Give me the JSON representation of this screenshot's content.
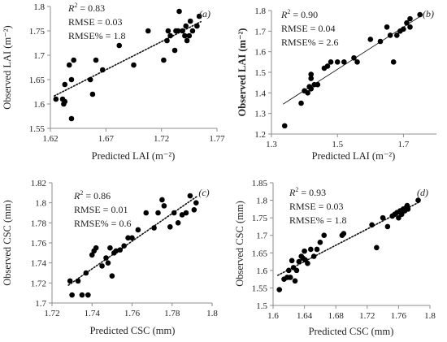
{
  "chart_data": [
    {
      "type": "scatter",
      "panel_label": "(a)",
      "xlabel": "Predicted LAI (m⁻²)",
      "ylabel": "Observed LAI (m⁻²)",
      "ylabel_bold": false,
      "xlim": [
        1.62,
        1.77
      ],
      "ylim": [
        1.55,
        1.8
      ],
      "xticks": [
        "1.62",
        "1.67",
        "1.72",
        "1.77"
      ],
      "yticks": [
        "1.55",
        "1.6",
        "1.65",
        "1.7",
        "1.75",
        "1.8"
      ],
      "trendline": "dotted",
      "stats": {
        "r2_value": "0.83",
        "rmse": "RMSE = 0.03",
        "rmse_pct": "RMSE% = 1.8"
      },
      "x": [
        1.625,
        1.631,
        1.632,
        1.633,
        1.633,
        1.637,
        1.639,
        1.639,
        1.641,
        1.656,
        1.658,
        1.661,
        1.667,
        1.682,
        1.695,
        1.708,
        1.722,
        1.725,
        1.726,
        1.728,
        1.732,
        1.733,
        1.735,
        1.736,
        1.739,
        1.741,
        1.742,
        1.743,
        1.745,
        1.746,
        1.748,
        1.752,
        1.754
      ],
      "y": [
        1.61,
        1.61,
        1.6,
        1.605,
        1.64,
        1.68,
        1.57,
        1.65,
        1.69,
        1.65,
        1.62,
        1.69,
        1.67,
        1.72,
        1.68,
        1.75,
        1.69,
        1.73,
        1.75,
        1.74,
        1.71,
        1.75,
        1.75,
        1.79,
        1.75,
        1.74,
        1.76,
        1.73,
        1.74,
        1.77,
        1.75,
        1.76,
        1.78
      ]
    },
    {
      "type": "scatter",
      "panel_label": "(b)",
      "xlabel": "Predicted LAI (m⁻²)",
      "ylabel": "Observed LAI (m⁻²)",
      "ylabel_bold": true,
      "xlim": [
        1.3,
        1.8
      ],
      "ylim": [
        1.2,
        1.8
      ],
      "xticks": [
        "1.3",
        "1.5",
        "1.7"
      ],
      "yticks": [
        "1.2",
        "1.3",
        "1.4",
        "1.5",
        "1.6",
        "1.7",
        "1.8"
      ],
      "trendline": "solid",
      "stats": {
        "r2_value": "0.90",
        "rmse": "RMSE = 0.04",
        "rmse_pct": "RMSE% = 2.6"
      },
      "x": [
        1.34,
        1.39,
        1.4,
        1.41,
        1.415,
        1.42,
        1.42,
        1.42,
        1.43,
        1.44,
        1.46,
        1.47,
        1.48,
        1.5,
        1.52,
        1.55,
        1.56,
        1.6,
        1.63,
        1.65,
        1.66,
        1.67,
        1.68,
        1.69,
        1.7,
        1.71,
        1.72,
        1.72,
        1.75
      ],
      "y": [
        1.24,
        1.35,
        1.41,
        1.4,
        1.43,
        1.47,
        1.49,
        1.42,
        1.44,
        1.44,
        1.52,
        1.53,
        1.55,
        1.55,
        1.55,
        1.57,
        1.55,
        1.66,
        1.65,
        1.72,
        1.68,
        1.55,
        1.68,
        1.7,
        1.71,
        1.74,
        1.76,
        1.72,
        1.78
      ]
    },
    {
      "type": "scatter",
      "panel_label": "(c)",
      "xlabel": "Predicted CSC (mm)",
      "ylabel": "Observed CSC (mm)",
      "ylabel_bold": false,
      "xlim": [
        1.72,
        1.8
      ],
      "ylim": [
        1.7,
        1.82
      ],
      "xticks": [
        "1.72",
        "1.74",
        "1.76",
        "1.78",
        "1.8"
      ],
      "yticks": [
        "1.7",
        "1.72",
        "1.74",
        "1.76",
        "1.78",
        "1.8",
        "1.82"
      ],
      "trendline": "dotted",
      "stats": {
        "r2_value": "0.86",
        "rmse": "RMSE = 0.01",
        "rmse_pct": "RMSE% = 0.6"
      },
      "x": [
        1.729,
        1.73,
        1.733,
        1.735,
        1.737,
        1.738,
        1.74,
        1.741,
        1.742,
        1.745,
        1.747,
        1.748,
        1.749,
        1.75,
        1.751,
        1.752,
        1.754,
        1.756,
        1.758,
        1.76,
        1.763,
        1.767,
        1.771,
        1.773,
        1.775,
        1.776,
        1.779,
        1.781,
        1.783,
        1.785,
        1.787,
        1.789,
        1.791,
        1.792
      ],
      "y": [
        1.722,
        1.708,
        1.722,
        1.708,
        1.73,
        1.708,
        1.748,
        1.752,
        1.755,
        1.737,
        1.745,
        1.74,
        1.755,
        1.727,
        1.75,
        1.752,
        1.753,
        1.757,
        1.765,
        1.765,
        1.773,
        1.79,
        1.775,
        1.79,
        1.803,
        1.797,
        1.776,
        1.79,
        1.78,
        1.788,
        1.79,
        1.807,
        1.793,
        1.8
      ]
    },
    {
      "type": "scatter",
      "panel_label": "(d)",
      "xlabel": "Predicted CSC (mm)",
      "ylabel": "Observed CSC (mm)",
      "ylabel_bold": false,
      "xlim": [
        1.6,
        1.8
      ],
      "ylim": [
        1.5,
        1.85
      ],
      "xticks": [
        "1.6",
        "1.64",
        "1.68",
        "1.72",
        "1.76",
        "1.8"
      ],
      "yticks": [
        "1.5",
        "1.55",
        "1.6",
        "1.65",
        "1.7",
        "1.75",
        "1.8",
        "1.85"
      ],
      "trendline": "dotted",
      "stats": {
        "r2_value": "0.93",
        "rmse": "RMSE = 0.03",
        "rmse_pct": "RMSE% = 1.8"
      },
      "x": [
        1.608,
        1.614,
        1.618,
        1.62,
        1.622,
        1.624,
        1.626,
        1.628,
        1.63,
        1.633,
        1.636,
        1.638,
        1.64,
        1.641,
        1.644,
        1.648,
        1.652,
        1.656,
        1.66,
        1.665,
        1.688,
        1.69,
        1.726,
        1.732,
        1.74,
        1.746,
        1.752,
        1.755,
        1.758,
        1.76,
        1.762,
        1.764,
        1.766,
        1.768,
        1.77,
        1.771,
        1.772,
        1.785
      ],
      "y": [
        1.545,
        1.575,
        1.58,
        1.6,
        1.58,
        1.628,
        1.608,
        1.57,
        1.6,
        1.625,
        1.64,
        1.635,
        1.655,
        1.63,
        1.62,
        1.66,
        1.64,
        1.66,
        1.68,
        1.7,
        1.7,
        1.705,
        1.73,
        1.665,
        1.75,
        1.725,
        1.755,
        1.76,
        1.765,
        1.75,
        1.77,
        1.76,
        1.775,
        1.77,
        1.78,
        1.785,
        1.775,
        1.8
      ]
    }
  ]
}
